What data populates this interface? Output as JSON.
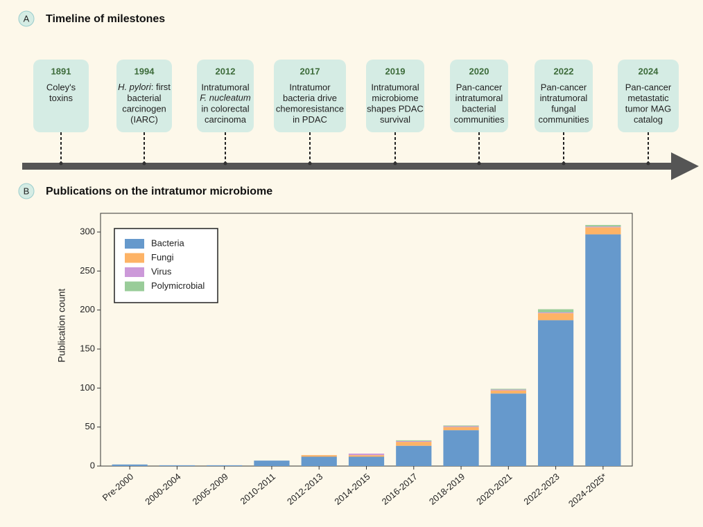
{
  "panel_a": {
    "label": "A",
    "title": "Timeline of milestones",
    "events": [
      {
        "year": "1891",
        "lines": [
          "Coley's",
          "toxins"
        ]
      },
      {
        "year": "1994",
        "lines": [
          [
            {
              "text": "H. pylori",
              "italic": true
            },
            {
              "text": ": first"
            }
          ],
          "bacterial",
          "carcinogen",
          "(IARC)"
        ]
      },
      {
        "year": "2012",
        "lines": [
          "Intratumoral",
          [
            {
              "text": "F. nucleatum",
              "italic": true
            }
          ],
          "in colorectal",
          "carcinoma"
        ]
      },
      {
        "year": "2017",
        "lines": [
          "Intratumor",
          "bacteria drive",
          "chemoresistance",
          "in PDAC"
        ]
      },
      {
        "year": "2019",
        "lines": [
          "Intratumoral",
          "microbiome",
          "shapes PDAC",
          "survival"
        ]
      },
      {
        "year": "2020",
        "lines": [
          "Pan-cancer",
          "intratumoral",
          "bacterial",
          "communities"
        ]
      },
      {
        "year": "2022",
        "lines": [
          "Pan-cancer",
          "intratumoral",
          "fungal",
          "communities"
        ]
      },
      {
        "year": "2024",
        "lines": [
          "Pan-cancer",
          "metastatic",
          "tumor MAG",
          "catalog"
        ]
      }
    ]
  },
  "chart_data": {
    "type": "stacked_bar",
    "panel_label": "B",
    "title": "Publications on the intratumor microbiome",
    "y_label": "Publication count",
    "categories": [
      "Pre-2000",
      "2000-2004",
      "2005-2009",
      "2010-2011",
      "2012-2013",
      "2014-2015",
      "2016-2017",
      "2018-2019",
      "2020-2021",
      "2022-2023",
      "2024-2025*"
    ],
    "series": [
      {
        "name": "Bacteria",
        "color": "#6699cc",
        "values": [
          2,
          1,
          1,
          7,
          12,
          12,
          26,
          46,
          93,
          187,
          297
        ]
      },
      {
        "name": "Fungi",
        "color": "#fdb366",
        "values": [
          0,
          0,
          0,
          0,
          2,
          2,
          5,
          4,
          4,
          9,
          9
        ]
      },
      {
        "name": "Virus",
        "color": "#cc99d9",
        "values": [
          0,
          0,
          0,
          0,
          0,
          2,
          1,
          1,
          1,
          1,
          1
        ]
      },
      {
        "name": "Polymicrobial",
        "color": "#99cc99",
        "values": [
          0,
          0,
          0,
          0,
          0,
          0,
          1,
          1,
          1,
          4,
          2
        ]
      }
    ],
    "ylim": [
      0,
      324
    ],
    "yticks": [
      0,
      50,
      100,
      150,
      200,
      250,
      300
    ],
    "legend": "upper left"
  }
}
